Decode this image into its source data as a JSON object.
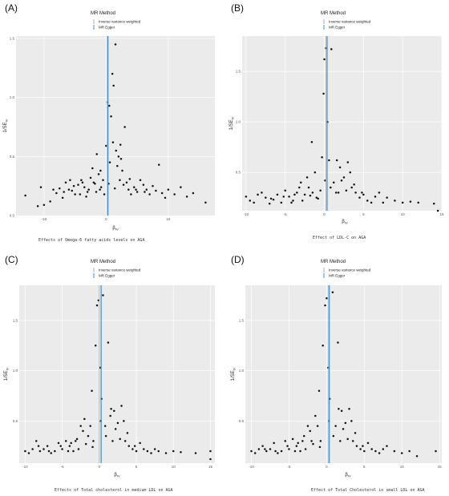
{
  "chart_data": [
    {
      "type": "scatter",
      "panel_label": "(A)",
      "caption": "Effects of Omega-6 fatty acids levels on AGA",
      "xlabel": "β_IV",
      "ylabel": "1/SE_IV",
      "xlim": [
        -14.5,
        17.5
      ],
      "ylim": [
        0.0,
        1.52
      ],
      "xticks": [
        -10,
        0,
        10
      ],
      "yticks": [
        0.5,
        1.0,
        1.5
      ],
      "ytick_labels": [
        "0.5",
        "1.0",
        "1.5"
      ],
      "ybase_label": "0.0",
      "lines": {
        "ivw": 0.15,
        "egger": 0.3
      },
      "legend": {
        "title": "MR Method",
        "items": [
          "Inverse variance weighted",
          "MR Egger"
        ]
      },
      "grid": true,
      "points": [
        [
          -13,
          0.17
        ],
        [
          -11,
          0.08
        ],
        [
          -10.5,
          0.24
        ],
        [
          -10,
          0.09
        ],
        [
          -9,
          0.12
        ],
        [
          -8,
          0.19
        ],
        [
          -7.5,
          0.23
        ],
        [
          -7,
          0.15
        ],
        [
          -6.5,
          0.28
        ],
        [
          -6,
          0.22
        ],
        [
          -5.5,
          0.21
        ],
        [
          -5,
          0.18
        ],
        [
          -4.5,
          0.26
        ],
        [
          -4,
          0.3
        ],
        [
          -3.5,
          0.24
        ],
        [
          -3,
          0.2
        ],
        [
          -2.5,
          0.32
        ],
        [
          -2,
          0.28
        ],
        [
          -1.5,
          0.52
        ],
        [
          -1,
          0.22
        ],
        [
          -0.5,
          0.3
        ],
        [
          -0.3,
          0.18
        ],
        [
          0,
          0.59
        ],
        [
          0.2,
          0.96
        ],
        [
          0.5,
          0.93
        ],
        [
          0.8,
          0.84
        ],
        [
          1,
          1.2
        ],
        [
          1.2,
          1.1
        ],
        [
          1.5,
          1.45
        ],
        [
          1.8,
          0.42
        ],
        [
          2,
          0.5
        ],
        [
          2.3,
          0.6
        ],
        [
          2.6,
          0.38
        ],
        [
          3,
          0.75
        ],
        [
          3.3,
          0.28
        ],
        [
          3.6,
          0.22
        ],
        [
          4,
          0.18
        ],
        [
          4.5,
          0.24
        ],
        [
          5,
          0.2
        ],
        [
          5.5,
          0.3
        ],
        [
          6,
          0.26
        ],
        [
          6.5,
          0.22
        ],
        [
          7,
          0.18
        ],
        [
          7.5,
          0.25
        ],
        [
          8,
          0.21
        ],
        [
          8.5,
          0.43
        ],
        [
          9,
          0.19
        ],
        [
          9.5,
          0.15
        ],
        [
          10,
          0.22
        ],
        [
          11,
          0.18
        ],
        [
          12,
          0.24
        ],
        [
          13,
          0.16
        ],
        [
          14,
          0.19
        ],
        [
          16,
          0.11
        ],
        [
          -8.5,
          0.22
        ],
        [
          -6.8,
          0.2
        ],
        [
          -5.2,
          0.25
        ],
        [
          -3.8,
          0.28
        ],
        [
          -2.8,
          0.22
        ],
        [
          -1.8,
          0.27
        ],
        [
          -0.8,
          0.24
        ],
        [
          0.4,
          0.27
        ],
        [
          1.4,
          0.23
        ],
        [
          2.2,
          0.3
        ],
        [
          2.8,
          0.26
        ],
        [
          3.8,
          0.31
        ],
        [
          4.8,
          0.22
        ],
        [
          6.2,
          0.2
        ],
        [
          -4.2,
          0.18
        ],
        [
          -1.2,
          0.35
        ],
        [
          0.6,
          0.45
        ],
        [
          1.6,
          0.55
        ],
        [
          2.4,
          0.48
        ],
        [
          -2.2,
          0.4
        ],
        [
          -0.9,
          0.38
        ],
        [
          1.1,
          0.62
        ],
        [
          -1.6,
          0.2
        ],
        [
          -3.2,
          0.16
        ],
        [
          -5.8,
          0.3
        ]
      ]
    },
    {
      "type": "scatter",
      "panel_label": "(B)",
      "caption": "Effect of LDL-C on AGA",
      "xlabel": "β_IV",
      "ylabel": "1/SE_IV",
      "xlim": [
        -10.5,
        15.0
      ],
      "ylim": [
        0.12,
        1.85
      ],
      "xticks": [
        -10,
        -5,
        0,
        5,
        10,
        15
      ],
      "yticks": [
        0.5,
        1.0,
        1.5
      ],
      "ytick_labels": [
        "0.5",
        "1.0",
        "1.5"
      ],
      "ybase_label": "",
      "lines": {
        "ivw": 0.2,
        "egger": 0.35
      },
      "legend": {
        "title": "MR Method",
        "items": [
          "Inverse variance weighted",
          "MR Egger"
        ]
      },
      "grid": true,
      "points": [
        [
          -10,
          0.26
        ],
        [
          -9.5,
          0.22
        ],
        [
          -9,
          0.2
        ],
        [
          -8,
          0.3
        ],
        [
          -7.5,
          0.25
        ],
        [
          -7,
          0.19
        ],
        [
          -6.5,
          0.23
        ],
        [
          -6,
          0.28
        ],
        [
          -5.5,
          0.2
        ],
        [
          -5,
          0.32
        ],
        [
          -4.5,
          0.26
        ],
        [
          -4,
          0.22
        ],
        [
          -3.5,
          0.3
        ],
        [
          -3,
          0.4
        ],
        [
          -2.5,
          0.28
        ],
        [
          -2,
          0.35
        ],
        [
          -1.5,
          0.3
        ],
        [
          -1,
          0.25
        ],
        [
          -0.5,
          0.32
        ],
        [
          -0.3,
          0.65
        ],
        [
          -0.1,
          1.28
        ],
        [
          0,
          1.62
        ],
        [
          0.2,
          1.73
        ],
        [
          0.4,
          1.0
        ],
        [
          0.6,
          0.62
        ],
        [
          0.9,
          1.72
        ],
        [
          1.2,
          0.4
        ],
        [
          1.5,
          0.3
        ],
        [
          2,
          0.55
        ],
        [
          2.5,
          0.45
        ],
        [
          3,
          0.6
        ],
        [
          3.5,
          0.35
        ],
        [
          4,
          0.3
        ],
        [
          4.5,
          0.25
        ],
        [
          5,
          0.28
        ],
        [
          5.5,
          0.22
        ],
        [
          6,
          0.2
        ],
        [
          6.5,
          0.26
        ],
        [
          7,
          0.3
        ],
        [
          7.5,
          0.2
        ],
        [
          8,
          0.25
        ],
        [
          9,
          0.22
        ],
        [
          10,
          0.2
        ],
        [
          11,
          0.21
        ],
        [
          12,
          0.2
        ],
        [
          14,
          0.19
        ],
        [
          14.5,
          0.12
        ],
        [
          -8.5,
          0.28
        ],
        [
          -6.8,
          0.24
        ],
        [
          -5.2,
          0.26
        ],
        [
          -3.8,
          0.28
        ],
        [
          -2.8,
          0.22
        ],
        [
          -1.8,
          0.27
        ],
        [
          -0.8,
          0.24
        ],
        [
          0.8,
          0.35
        ],
        [
          1.8,
          0.3
        ],
        [
          2.2,
          0.42
        ],
        [
          2.8,
          0.32
        ],
        [
          3.8,
          0.38
        ],
        [
          4.8,
          0.3
        ],
        [
          -4.2,
          0.2
        ],
        [
          -2.2,
          0.45
        ],
        [
          -1.2,
          0.5
        ],
        [
          1.6,
          0.62
        ],
        [
          -1.6,
          0.8
        ],
        [
          3.3,
          0.5
        ],
        [
          -3.2,
          0.35
        ],
        [
          0.1,
          0.42
        ]
      ]
    },
    {
      "type": "scatter",
      "panel_label": "(C)",
      "caption": "Effects of Total cholesterol in medium LDL on AGA",
      "xlabel": "β_IV",
      "ylabel": "1/SE_IV",
      "xlim": [
        -10.8,
        15.6
      ],
      "ylim": [
        0.08,
        1.85
      ],
      "xticks": [
        -10,
        -5,
        0,
        5,
        10,
        15
      ],
      "yticks": [
        0.5,
        1.0,
        1.5
      ],
      "ytick_labels": [
        "0.5",
        "1.0",
        "1.5"
      ],
      "ybase_label": "",
      "lines": {
        "ivw": 0.0,
        "egger": 0.25
      },
      "legend": {
        "title": "MR Method",
        "items": [
          "Inverse variance weighted",
          "MR Egger"
        ]
      },
      "grid": true,
      "points": [
        [
          -10,
          0.2
        ],
        [
          -9.5,
          0.18
        ],
        [
          -9,
          0.22
        ],
        [
          -8.5,
          0.3
        ],
        [
          -8,
          0.2
        ],
        [
          -7.5,
          0.22
        ],
        [
          -7,
          0.25
        ],
        [
          -6.5,
          0.18
        ],
        [
          -6,
          0.2
        ],
        [
          -5.5,
          0.28
        ],
        [
          -5,
          0.22
        ],
        [
          -4.5,
          0.3
        ],
        [
          -4,
          0.25
        ],
        [
          -3.5,
          0.2
        ],
        [
          -3,
          0.32
        ],
        [
          -2.5,
          0.45
        ],
        [
          -2,
          0.52
        ],
        [
          -1.5,
          0.35
        ],
        [
          -1,
          0.8
        ],
        [
          -0.8,
          0.3
        ],
        [
          -0.5,
          1.25
        ],
        [
          -0.3,
          1.65
        ],
        [
          -0.1,
          1.7
        ],
        [
          0.1,
          1.03
        ],
        [
          0.3,
          0.72
        ],
        [
          0.5,
          1.75
        ],
        [
          0.8,
          0.45
        ],
        [
          1.2,
          1.28
        ],
        [
          1.5,
          0.55
        ],
        [
          2,
          0.6
        ],
        [
          2.5,
          0.48
        ],
        [
          3,
          0.65
        ],
        [
          3.5,
          0.3
        ],
        [
          4,
          0.25
        ],
        [
          4.5,
          0.22
        ],
        [
          5,
          0.2
        ],
        [
          5.5,
          0.28
        ],
        [
          6,
          0.22
        ],
        [
          6.5,
          0.2
        ],
        [
          7,
          0.18
        ],
        [
          7.5,
          0.22
        ],
        [
          8,
          0.2
        ],
        [
          9,
          0.18
        ],
        [
          10,
          0.2
        ],
        [
          11,
          0.19
        ],
        [
          13,
          0.18
        ],
        [
          15,
          0.2
        ],
        [
          15,
          0.12
        ],
        [
          -8.2,
          0.25
        ],
        [
          -6.8,
          0.2
        ],
        [
          -5.2,
          0.25
        ],
        [
          -3.8,
          0.28
        ],
        [
          -2.8,
          0.22
        ],
        [
          -1.8,
          0.27
        ],
        [
          -0.9,
          0.24
        ],
        [
          0.9,
          0.35
        ],
        [
          1.8,
          0.3
        ],
        [
          2.2,
          0.42
        ],
        [
          2.8,
          0.32
        ],
        [
          3.8,
          0.38
        ],
        [
          4.8,
          0.25
        ],
        [
          -4.2,
          0.2
        ],
        [
          -2.2,
          0.4
        ],
        [
          -1.2,
          0.45
        ],
        [
          1.6,
          0.62
        ],
        [
          3.3,
          0.5
        ],
        [
          -3.2,
          0.3
        ],
        [
          0.2,
          0.5
        ]
      ]
    },
    {
      "type": "scatter",
      "panel_label": "(D)",
      "caption": "Effect of Total Cholesterol in small LDL on AGA",
      "xlabel": "β_IV",
      "ylabel": "1/SE_IV",
      "xlim": [
        -10.8,
        15.3
      ],
      "ylim": [
        0.08,
        1.85
      ],
      "xticks": [
        -10,
        -5,
        0,
        5,
        10,
        15
      ],
      "yticks": [
        0.5,
        1.0,
        1.5
      ],
      "ytick_labels": [
        "0.5",
        "1.0",
        "1.5"
      ],
      "ybase_label": "",
      "lines": {
        "ivw": 0.2,
        "egger": 0.35
      },
      "legend": {
        "title": "MR Method",
        "items": [
          "Inverse variance weighted",
          "MR Egger"
        ]
      },
      "grid": true,
      "points": [
        [
          -10,
          0.2
        ],
        [
          -9.5,
          0.18
        ],
        [
          -9,
          0.22
        ],
        [
          -8.5,
          0.25
        ],
        [
          -8,
          0.2
        ],
        [
          -7.5,
          0.22
        ],
        [
          -7,
          0.28
        ],
        [
          -6.5,
          0.18
        ],
        [
          -6,
          0.2
        ],
        [
          -5.5,
          0.3
        ],
        [
          -5,
          0.22
        ],
        [
          -4.5,
          0.32
        ],
        [
          -4,
          0.25
        ],
        [
          -3.5,
          0.2
        ],
        [
          -3,
          0.35
        ],
        [
          -2.5,
          0.45
        ],
        [
          -2,
          0.3
        ],
        [
          -1.5,
          0.55
        ],
        [
          -1,
          0.8
        ],
        [
          -0.8,
          0.3
        ],
        [
          -0.5,
          1.25
        ],
        [
          -0.2,
          1.65
        ],
        [
          0,
          1.72
        ],
        [
          0.2,
          1.03
        ],
        [
          0.4,
          0.72
        ],
        [
          0.8,
          1.78
        ],
        [
          1.2,
          0.45
        ],
        [
          1.5,
          1.28
        ],
        [
          2,
          0.6
        ],
        [
          2.5,
          0.48
        ],
        [
          3,
          0.62
        ],
        [
          3.5,
          0.3
        ],
        [
          4,
          0.25
        ],
        [
          4.5,
          0.22
        ],
        [
          5,
          0.2
        ],
        [
          5.5,
          0.28
        ],
        [
          6,
          0.22
        ],
        [
          6.5,
          0.2
        ],
        [
          7,
          0.18
        ],
        [
          7.5,
          0.22
        ],
        [
          8,
          0.25
        ],
        [
          9,
          0.2
        ],
        [
          10,
          0.18
        ],
        [
          11,
          0.2
        ],
        [
          12,
          0.15
        ],
        [
          14.5,
          0.2
        ],
        [
          -8.2,
          0.22
        ],
        [
          -6.8,
          0.2
        ],
        [
          -5.2,
          0.25
        ],
        [
          -3.8,
          0.28
        ],
        [
          -2.8,
          0.22
        ],
        [
          -1.8,
          0.27
        ],
        [
          -0.9,
          0.24
        ],
        [
          0.9,
          0.35
        ],
        [
          1.8,
          0.3
        ],
        [
          2.2,
          0.42
        ],
        [
          2.8,
          0.32
        ],
        [
          3.8,
          0.38
        ],
        [
          4.8,
          0.25
        ],
        [
          -4.2,
          0.2
        ],
        [
          -2.2,
          0.4
        ],
        [
          -1.2,
          0.45
        ],
        [
          1.6,
          0.62
        ],
        [
          3.3,
          0.5
        ],
        [
          -3.2,
          0.3
        ],
        [
          0.3,
          0.5
        ]
      ]
    }
  ]
}
